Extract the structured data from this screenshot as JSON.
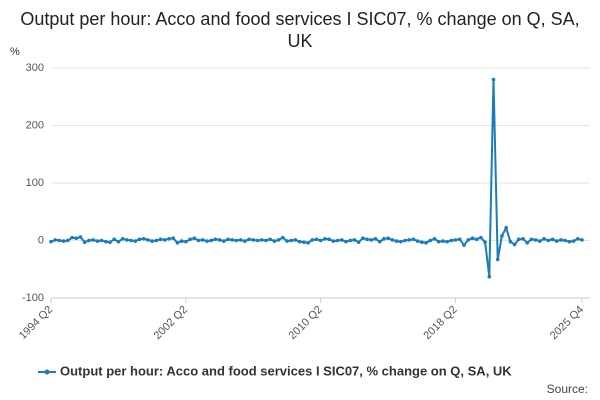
{
  "chart_data": {
    "type": "line",
    "title": "Output per hour: Acco and food services I SIC07, % change on Q, SA, UK",
    "y_label": "%",
    "source": "Source:",
    "categories": [
      "1994 Q2",
      null,
      null,
      null,
      null,
      null,
      null,
      null,
      null,
      null,
      null,
      null,
      null,
      null,
      null,
      null,
      null,
      null,
      null,
      null,
      null,
      null,
      null,
      null,
      null,
      null,
      null,
      null,
      null,
      null,
      null,
      null,
      "2002 Q2",
      null,
      null,
      null,
      null,
      null,
      null,
      null,
      null,
      null,
      null,
      null,
      null,
      null,
      null,
      null,
      null,
      null,
      null,
      null,
      null,
      null,
      null,
      null,
      null,
      null,
      null,
      null,
      null,
      null,
      null,
      null,
      "2010 Q2",
      null,
      null,
      null,
      null,
      null,
      null,
      null,
      null,
      null,
      null,
      null,
      null,
      null,
      null,
      null,
      null,
      null,
      null,
      null,
      null,
      null,
      null,
      null,
      null,
      null,
      null,
      null,
      null,
      null,
      null,
      null,
      "2018 Q2",
      null,
      null,
      null,
      null,
      null,
      null,
      null,
      null,
      null,
      null,
      null,
      null,
      null,
      null,
      null,
      null,
      null,
      null,
      null,
      null,
      null,
      null,
      null,
      null,
      null,
      null,
      null,
      null,
      null,
      "2025 Q4"
    ],
    "series": [
      {
        "name": "Output per hour: Acco and food services I SIC07, % change on Q, SA, UK",
        "color": "#1a7bbd",
        "values": [
          -2,
          1,
          0,
          -1,
          0,
          5,
          4,
          6,
          -3,
          0,
          1,
          -1,
          0,
          -2,
          -3,
          2,
          -2,
          3,
          1,
          0,
          -1,
          2,
          3,
          1,
          -1,
          0,
          2,
          1,
          3,
          4,
          -4,
          -1,
          -2,
          2,
          4,
          0,
          1,
          -1,
          0,
          2,
          1,
          -1,
          2,
          1,
          0,
          1,
          -1,
          2,
          1,
          0,
          1,
          0,
          2,
          -1,
          1,
          5,
          -1,
          0,
          1,
          -2,
          -3,
          -4,
          1,
          2,
          0,
          3,
          2,
          -1,
          0,
          1,
          -2,
          0,
          1,
          -3,
          4,
          2,
          1,
          3,
          -2,
          3,
          4,
          1,
          -1,
          -2,
          0,
          1,
          2,
          -1,
          -3,
          -4,
          0,
          3,
          -2,
          -1,
          -2,
          0,
          1,
          2,
          -8,
          1,
          4,
          2,
          5,
          -3,
          -63,
          280,
          -33,
          8,
          22,
          -2,
          -7,
          2,
          3,
          -4,
          2,
          1,
          -1,
          3,
          0,
          2,
          -1,
          1,
          0,
          -2,
          -1,
          3,
          1
        ]
      }
    ],
    "ylim": [
      -100,
      300
    ],
    "yticks": [
      -100,
      0,
      100,
      200,
      300
    ],
    "grid": true
  }
}
